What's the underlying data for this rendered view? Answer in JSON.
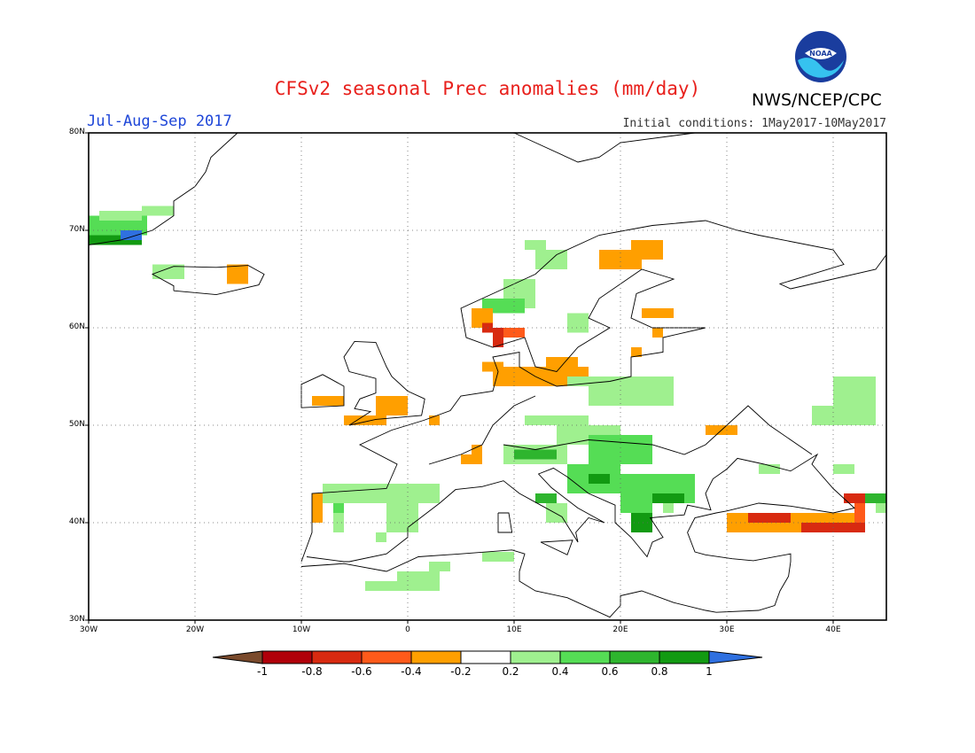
{
  "title": "CFSv2 seasonal Prec anomalies (mm/day)",
  "agency": "NWS/NCEP/CPC",
  "season": "Jul-Aug-Sep 2017",
  "initial_conditions": "Initial conditions: 1May2017-10May2017",
  "logo_text": "NOAA",
  "map": {
    "lon_range": [
      -30,
      45
    ],
    "lat_range": [
      30,
      80
    ],
    "lat_ticks": [
      "30N",
      "40N",
      "50N",
      "60N",
      "70N",
      "80N"
    ],
    "lon_ticks": [
      "30W",
      "20W",
      "10W",
      "0",
      "10E",
      "20E",
      "30E",
      "40E"
    ],
    "grid": true
  },
  "colorbar": {
    "labels": [
      "-1",
      "-0.8",
      "-0.6",
      "-0.4",
      "-0.2",
      "0.2",
      "0.4",
      "0.6",
      "0.8",
      "1"
    ],
    "colors": [
      "#7a4a2c",
      "#b0000a",
      "#d82a10",
      "#ff5a1a",
      "#ff9f00",
      "#ffffff",
      "#9ff08f",
      "#55dd55",
      "#2eb52e",
      "#129a12",
      "#2f70e0"
    ]
  },
  "anomaly_cells": [
    {
      "lon": -30,
      "lat": 69.5,
      "w": 5.5,
      "h": 2,
      "v": 0.5
    },
    {
      "lon": -30,
      "lat": 68.5,
      "w": 5,
      "h": 1,
      "v": 0.8
    },
    {
      "lon": -27,
      "lat": 69,
      "w": 2,
      "h": 1,
      "v": 1
    },
    {
      "lon": -29,
      "lat": 71,
      "w": 4,
      "h": 1,
      "v": 0.3
    },
    {
      "lon": -25,
      "lat": 71.5,
      "w": 3,
      "h": 1,
      "v": 0.3
    },
    {
      "lon": -24,
      "lat": 65,
      "w": 3,
      "h": 1.5,
      "v": 0.3
    },
    {
      "lon": -17,
      "lat": 64.5,
      "w": 2,
      "h": 2,
      "v": -0.3
    },
    {
      "lon": 11,
      "lat": 68,
      "w": 2,
      "h": 1,
      "v": 0.3
    },
    {
      "lon": 12,
      "lat": 66,
      "w": 3,
      "h": 2,
      "v": 0.3
    },
    {
      "lon": 9,
      "lat": 62,
      "w": 3,
      "h": 3,
      "v": 0.3
    },
    {
      "lon": 7,
      "lat": 61.5,
      "w": 4,
      "h": 1.5,
      "v": 0.5
    },
    {
      "lon": 6,
      "lat": 60,
      "w": 2,
      "h": 2,
      "v": -0.3
    },
    {
      "lon": 7,
      "lat": 59.5,
      "w": 1,
      "h": 1,
      "v": -0.7
    },
    {
      "lon": 8,
      "lat": 58,
      "w": 1,
      "h": 2,
      "v": -0.8
    },
    {
      "lon": 9,
      "lat": 59,
      "w": 2,
      "h": 1,
      "v": -0.6
    },
    {
      "lon": 18,
      "lat": 66,
      "w": 4,
      "h": 2,
      "v": -0.3
    },
    {
      "lon": 21,
      "lat": 67,
      "w": 3,
      "h": 2,
      "v": -0.3
    },
    {
      "lon": 22,
      "lat": 61,
      "w": 3,
      "h": 1,
      "v": -0.3
    },
    {
      "lon": 23,
      "lat": 59,
      "w": 1,
      "h": 1,
      "v": -0.3
    },
    {
      "lon": 21,
      "lat": 57,
      "w": 1,
      "h": 1,
      "v": -0.3
    },
    {
      "lon": 15,
      "lat": 59.5,
      "w": 2,
      "h": 2,
      "v": 0.3
    },
    {
      "lon": 13,
      "lat": 56,
      "w": 3,
      "h": 1,
      "v": -0.3
    },
    {
      "lon": 8,
      "lat": 54,
      "w": 9,
      "h": 2,
      "v": -0.3
    },
    {
      "lon": 7,
      "lat": 55.5,
      "w": 2,
      "h": 1,
      "v": -0.3
    },
    {
      "lon": 15,
      "lat": 54,
      "w": 4,
      "h": 1,
      "v": 0.3
    },
    {
      "lon": 17,
      "lat": 52,
      "w": 8,
      "h": 3,
      "v": 0.3
    },
    {
      "lon": 22,
      "lat": 54,
      "w": 3,
      "h": 1,
      "v": 0.3
    },
    {
      "lon": -9,
      "lat": 52,
      "w": 3,
      "h": 1,
      "v": -0.3
    },
    {
      "lon": -6,
      "lat": 50,
      "w": 4,
      "h": 1,
      "v": -0.3
    },
    {
      "lon": -3,
      "lat": 51,
      "w": 3,
      "h": 2,
      "v": -0.3
    },
    {
      "lon": 2,
      "lat": 50,
      "w": 1,
      "h": 1,
      "v": -0.3
    },
    {
      "lon": 11,
      "lat": 50,
      "w": 6,
      "h": 1,
      "v": 0.3
    },
    {
      "lon": 5,
      "lat": 46,
      "w": 2,
      "h": 1,
      "v": -0.3
    },
    {
      "lon": 6,
      "lat": 47,
      "w": 1,
      "h": 1,
      "v": -0.3
    },
    {
      "lon": 9,
      "lat": 46,
      "w": 6,
      "h": 2,
      "v": 0.3
    },
    {
      "lon": 10,
      "lat": 46.5,
      "w": 4,
      "h": 1,
      "v": 0.6
    },
    {
      "lon": 14,
      "lat": 48,
      "w": 6,
      "h": 2,
      "v": 0.3
    },
    {
      "lon": 17,
      "lat": 46,
      "w": 6,
      "h": 3,
      "v": 0.4
    },
    {
      "lon": 15,
      "lat": 43,
      "w": 5,
      "h": 3,
      "v": 0.5
    },
    {
      "lon": 17,
      "lat": 44,
      "w": 2,
      "h": 1,
      "v": 0.8
    },
    {
      "lon": 20,
      "lat": 42,
      "w": 7,
      "h": 3,
      "v": 0.4
    },
    {
      "lon": 23,
      "lat": 42,
      "w": 3,
      "h": 1,
      "v": 0.8
    },
    {
      "lon": 20,
      "lat": 41,
      "w": 3,
      "h": 2,
      "v": 0.5
    },
    {
      "lon": 21,
      "lat": 39,
      "w": 2,
      "h": 2,
      "v": 0.8
    },
    {
      "lon": 12,
      "lat": 42,
      "w": 2,
      "h": 1,
      "v": 0.7
    },
    {
      "lon": 13,
      "lat": 40,
      "w": 2,
      "h": 2,
      "v": 0.3
    },
    {
      "lon": 24,
      "lat": 41,
      "w": 1,
      "h": 1,
      "v": 0.3
    },
    {
      "lon": -8,
      "lat": 42,
      "w": 11,
      "h": 2,
      "v": 0.3
    },
    {
      "lon": -2,
      "lat": 39,
      "w": 3,
      "h": 3,
      "v": 0.3
    },
    {
      "lon": -3,
      "lat": 38,
      "w": 1,
      "h": 1,
      "v": 0.3
    },
    {
      "lon": -7,
      "lat": 41,
      "w": 1,
      "h": 1,
      "v": 0.5
    },
    {
      "lon": -7,
      "lat": 39,
      "w": 1,
      "h": 2,
      "v": 0.3
    },
    {
      "lon": -9,
      "lat": 40,
      "w": 1,
      "h": 3,
      "v": -0.3
    },
    {
      "lon": -1,
      "lat": 33,
      "w": 4,
      "h": 2,
      "v": 0.3
    },
    {
      "lon": -4,
      "lat": 33,
      "w": 3,
      "h": 1,
      "v": 0.3
    },
    {
      "lon": 2,
      "lat": 35,
      "w": 2,
      "h": 1,
      "v": 0.3
    },
    {
      "lon": 7,
      "lat": 36,
      "w": 3,
      "h": 1,
      "v": 0.3
    },
    {
      "lon": 29,
      "lat": 42,
      "w": 0,
      "h": 0,
      "v": 0
    },
    {
      "lon": 28,
      "lat": 49,
      "w": 3,
      "h": 1,
      "v": -0.3
    },
    {
      "lon": 38,
      "lat": 50,
      "w": 6,
      "h": 2,
      "v": 0.3
    },
    {
      "lon": 40,
      "lat": 52,
      "w": 4,
      "h": 3,
      "v": 0.3
    },
    {
      "lon": 41,
      "lat": 54,
      "w": 3,
      "h": 1,
      "v": 0.3
    },
    {
      "lon": 33,
      "lat": 45,
      "w": 2,
      "h": 1,
      "v": 0.3
    },
    {
      "lon": 40,
      "lat": 45,
      "w": 2,
      "h": 1,
      "v": 0.3
    },
    {
      "lon": 30,
      "lat": 39,
      "w": 12,
      "h": 2,
      "v": -0.3
    },
    {
      "lon": 32,
      "lat": 40,
      "w": 4,
      "h": 1,
      "v": -0.7
    },
    {
      "lon": 37,
      "lat": 39,
      "w": 6,
      "h": 1,
      "v": -0.7
    },
    {
      "lon": 42,
      "lat": 40,
      "w": 1,
      "h": 2,
      "v": -0.6
    },
    {
      "lon": 41,
      "lat": 42,
      "w": 2,
      "h": 1,
      "v": -0.8
    },
    {
      "lon": 43,
      "lat": 42,
      "w": 2,
      "h": 1,
      "v": 0.7
    },
    {
      "lon": 44,
      "lat": 41,
      "w": 1,
      "h": 1,
      "v": 0.3
    }
  ]
}
